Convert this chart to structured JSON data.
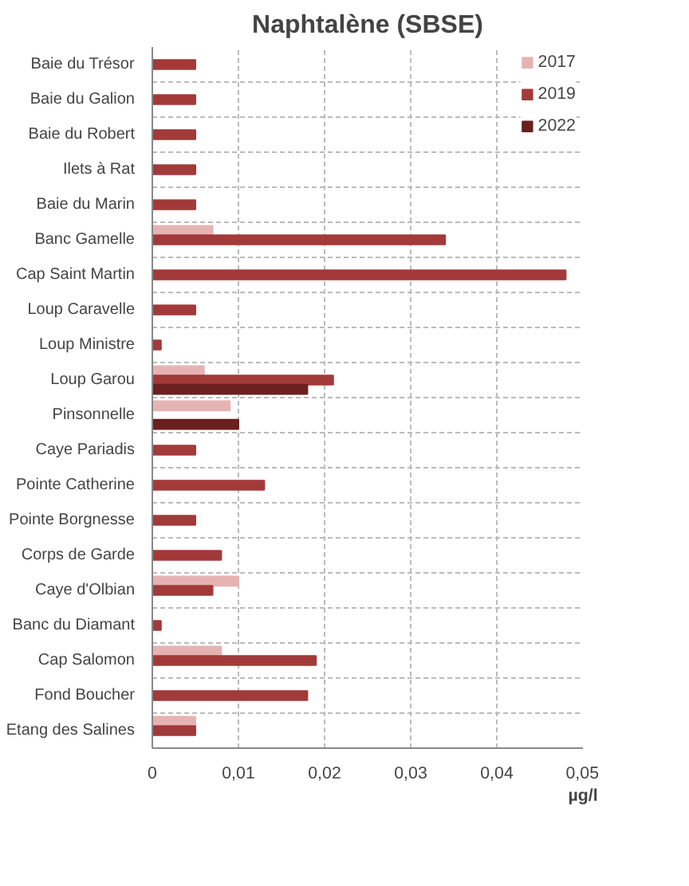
{
  "chart_data": {
    "type": "bar",
    "orientation": "horizontal",
    "title": "Naphtalène (SBSE)",
    "xlabel": "µg/l",
    "categories": [
      "Baie du Trésor",
      "Baie du Galion",
      "Baie du Robert",
      "Ilets à Rat",
      "Baie du Marin",
      "Banc Gamelle",
      "Cap Saint Martin",
      "Loup Caravelle",
      "Loup Ministre",
      "Loup Garou",
      "Pinsonnelle",
      "Caye Pariadis",
      "Pointe Catherine",
      "Pointe Borgnesse",
      "Corps de Garde",
      "Caye d'Olbian",
      "Banc du Diamant",
      "Cap Salomon",
      "Fond Boucher",
      "Etang des Salines"
    ],
    "series": [
      {
        "name": "2017",
        "color": "#e6b3b3",
        "values": [
          null,
          null,
          null,
          null,
          null,
          0.007,
          null,
          null,
          null,
          0.006,
          0.009,
          null,
          null,
          null,
          null,
          0.01,
          null,
          0.008,
          null,
          0.005
        ]
      },
      {
        "name": "2019",
        "color": "#a33a3a",
        "values": [
          0.005,
          0.005,
          0.005,
          0.005,
          0.005,
          0.034,
          0.048,
          0.005,
          0.001,
          0.021,
          null,
          0.005,
          0.013,
          0.005,
          0.008,
          0.007,
          0.001,
          0.019,
          0.018,
          0.005
        ]
      },
      {
        "name": "2022",
        "color": "#6b1f1f",
        "values": [
          null,
          null,
          null,
          null,
          null,
          null,
          null,
          null,
          null,
          0.018,
          0.01,
          null,
          null,
          null,
          null,
          null,
          null,
          null,
          null,
          null
        ]
      }
    ],
    "xlim": [
      0,
      0.05
    ],
    "xticks": [
      {
        "value": 0,
        "label": "0"
      },
      {
        "value": 0.01,
        "label": "0,01"
      },
      {
        "value": 0.02,
        "label": "0,02"
      },
      {
        "value": 0.03,
        "label": "0,03"
      },
      {
        "value": 0.04,
        "label": "0,04"
      },
      {
        "value": 0.05,
        "label": "0,05"
      }
    ],
    "grid": true,
    "legend": "top right"
  }
}
